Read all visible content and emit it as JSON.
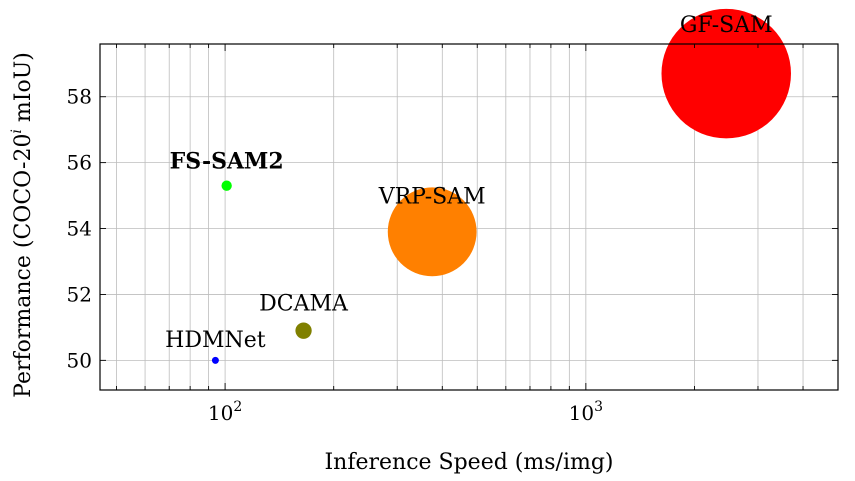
{
  "chart_data": {
    "type": "scatter",
    "xlabel": "Inference Speed (ms/img)",
    "ylabel": "Performance (COCO-20",
    "ylabel_sup": "i",
    "ylabel_tail": " mIoU)",
    "xscale": "log",
    "xlim": [
      45,
      5000
    ],
    "ylim": [
      49.1,
      59.6
    ],
    "grid": true,
    "x_ticks": [
      {
        "value": 100,
        "base": "10",
        "exp": "2"
      },
      {
        "value": 1000,
        "base": "10",
        "exp": "3"
      }
    ],
    "y_ticks": [
      50,
      52,
      54,
      56,
      58
    ],
    "points": [
      {
        "label": "HDMNet",
        "x": 94,
        "y": 50.0,
        "bubble": 0.8,
        "color": "#0000ff",
        "bold": false
      },
      {
        "label": "DCAMA",
        "x": 165,
        "y": 50.9,
        "bubble": 2.2,
        "color": "#808000",
        "bold": false
      },
      {
        "label": "FS-SAM2",
        "x": 101,
        "y": 55.3,
        "bubble": 1.4,
        "color": "#00ff00",
        "bold": true
      },
      {
        "label": "VRP-SAM",
        "x": 375,
        "y": 53.9,
        "bubble": 12,
        "color": "#ff8000",
        "bold": false
      },
      {
        "label": "GF-SAM",
        "x": 2450,
        "y": 58.7,
        "bubble": 17.5,
        "color": "#ff0000",
        "bold": false
      }
    ]
  }
}
